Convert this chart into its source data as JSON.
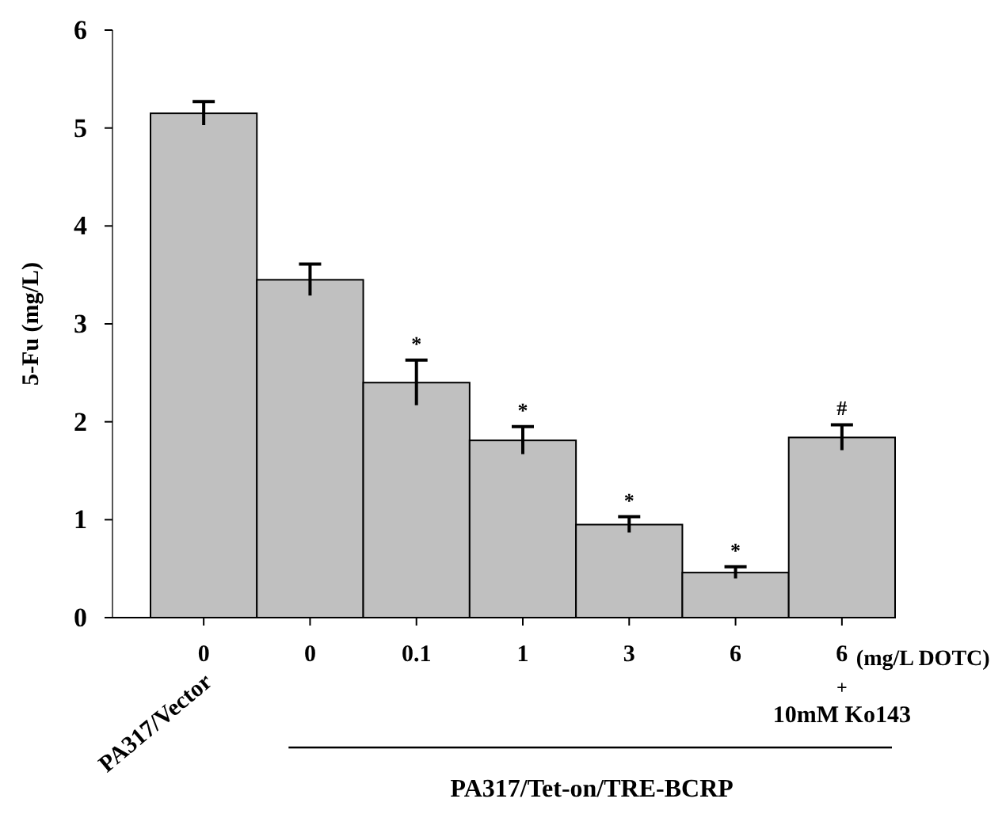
{
  "chart_data": {
    "type": "bar",
    "ylabel": "5-Fu (mg/L)",
    "categories": [
      "0",
      "0",
      "0.1",
      "1",
      "3",
      "6",
      "6"
    ],
    "values": [
      5.15,
      3.45,
      2.4,
      1.81,
      0.95,
      0.46,
      1.84
    ],
    "errors": [
      0.12,
      0.16,
      0.23,
      0.14,
      0.08,
      0.06,
      0.13
    ],
    "value_labels": [
      null,
      null,
      "*",
      "*",
      "*",
      "*",
      "#"
    ],
    "color": "#c0c0c0",
    "ylim": [
      0,
      6
    ],
    "yticks": [
      0,
      1,
      2,
      3,
      4,
      5,
      6
    ],
    "grid": false,
    "annotations": [
      "(mg/L DOTC)",
      "+",
      "10mM Ko143",
      "PA317/Vector",
      "PA317/Tet-on/TRE-BCRP"
    ]
  }
}
